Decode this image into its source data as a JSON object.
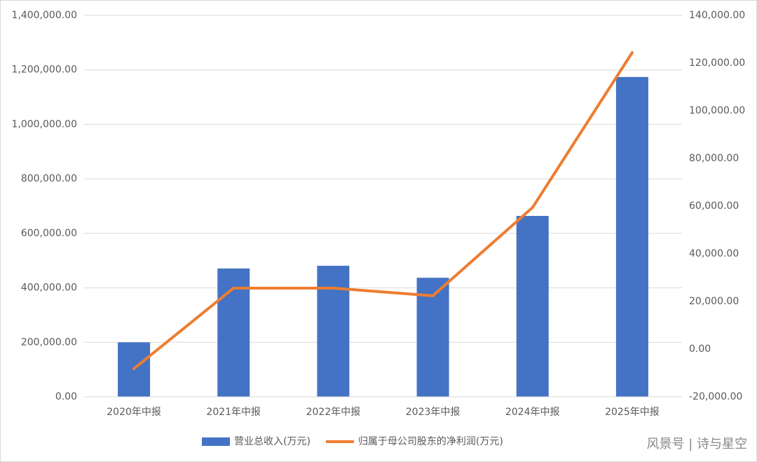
{
  "chart_data": {
    "type": "bar_line",
    "categories": [
      "2020年中报",
      "2021年中报",
      "2022年中报",
      "2023年中报",
      "2024年中报",
      "2025年中报"
    ],
    "series": [
      {
        "name": "营业总收入(万元)",
        "type": "bar",
        "color": "#4472c4",
        "values": [
          200000,
          471000,
          481000,
          437000,
          664000,
          1174000
        ]
      },
      {
        "name": "归属于母公司股东的净利润(万元)",
        "type": "line",
        "axis": "y2",
        "color": "#ed7d31",
        "values": [
          -8200,
          25600,
          25600,
          22400,
          59400,
          124400
        ]
      }
    ],
    "ylim": [
      0,
      1400000
    ],
    "yticks": [
      {
        "value": 0,
        "label": "0.00"
      },
      {
        "value": 200000,
        "label": "200,000.00"
      },
      {
        "value": 400000,
        "label": "400,000.00"
      },
      {
        "value": 600000,
        "label": "600,000.00"
      },
      {
        "value": 800000,
        "label": "800,000.00"
      },
      {
        "value": 1000000,
        "label": "1,000,000.00"
      },
      {
        "value": 1200000,
        "label": "1,200,000.00"
      },
      {
        "value": 1400000,
        "label": "1,400,000.00"
      }
    ],
    "y2lim": [
      -20000,
      140000
    ],
    "y2ticks": [
      {
        "value": -20000,
        "label": "-20,000.00"
      },
      {
        "value": 0,
        "label": "0.00"
      },
      {
        "value": 20000,
        "label": "20,000.00"
      },
      {
        "value": 40000,
        "label": "40,000.00"
      },
      {
        "value": 60000,
        "label": "60,000.00"
      },
      {
        "value": 80000,
        "label": "80,000.00"
      },
      {
        "value": 100000,
        "label": "100,000.00"
      },
      {
        "value": 120000,
        "label": "120,000.00"
      },
      {
        "value": 140000,
        "label": "140,000.00"
      }
    ],
    "grid": true,
    "legend": "bottom",
    "watermark": "风景号 | 诗与星空"
  }
}
